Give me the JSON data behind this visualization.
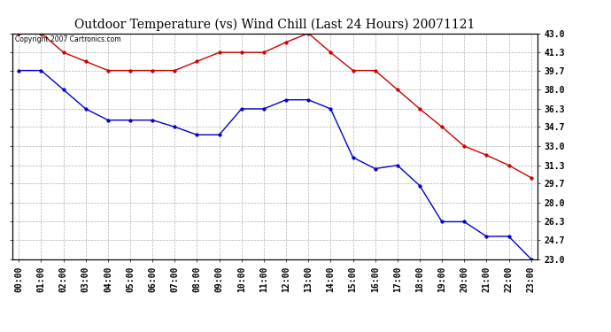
{
  "title": "Outdoor Temperature (vs) Wind Chill (Last 24 Hours) 20071121",
  "copyright_text": "Copyright 2007 Cartronics.com",
  "x_labels": [
    "00:00",
    "01:00",
    "02:00",
    "03:00",
    "04:00",
    "05:00",
    "06:00",
    "07:00",
    "08:00",
    "09:00",
    "10:00",
    "11:00",
    "12:00",
    "13:00",
    "14:00",
    "15:00",
    "16:00",
    "17:00",
    "18:00",
    "19:00",
    "20:00",
    "21:00",
    "22:00",
    "23:00"
  ],
  "outdoor_temp": [
    43.0,
    43.0,
    41.3,
    40.5,
    39.7,
    39.7,
    39.7,
    39.7,
    40.5,
    41.3,
    41.3,
    41.3,
    42.2,
    43.0,
    41.3,
    39.7,
    39.7,
    38.0,
    36.3,
    34.7,
    33.0,
    32.2,
    31.3,
    30.2
  ],
  "wind_chill": [
    39.7,
    39.7,
    38.0,
    36.3,
    35.3,
    35.3,
    35.3,
    34.7,
    34.0,
    34.0,
    36.3,
    36.3,
    37.1,
    37.1,
    36.3,
    32.0,
    31.0,
    31.3,
    29.5,
    26.3,
    26.3,
    25.0,
    25.0,
    23.0
  ],
  "ylim_min": 23.0,
  "ylim_max": 43.0,
  "yticks": [
    23.0,
    24.7,
    26.3,
    28.0,
    29.7,
    31.3,
    33.0,
    34.7,
    36.3,
    38.0,
    39.7,
    41.3,
    43.0
  ],
  "outdoor_color": "#cc0000",
  "windchill_color": "#0000cc",
  "grid_color": "#aaaaaa",
  "bg_color": "#ffffff",
  "title_fontsize": 10,
  "tick_fontsize": 7,
  "copyright_fontsize": 5.5,
  "figwidth": 6.9,
  "figheight": 3.75
}
